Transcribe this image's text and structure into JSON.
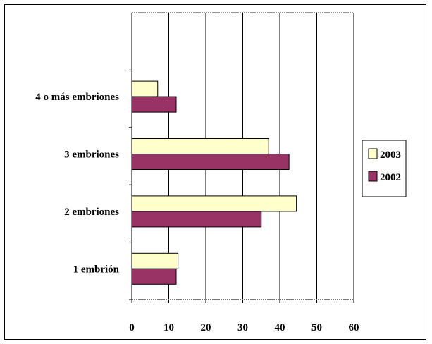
{
  "chart_data": {
    "type": "bar",
    "orientation": "horizontal",
    "categories": [
      "1 embrión",
      "2 embriones",
      "3 embriones",
      "4 o más embriones"
    ],
    "series": [
      {
        "name": "2003",
        "values": [
          12.5,
          44.5,
          37,
          7
        ],
        "color": "#FFFFCC"
      },
      {
        "name": "2002",
        "values": [
          12,
          35,
          42.5,
          12
        ],
        "color": "#993366"
      }
    ],
    "xticks": [
      "0",
      "10",
      "20",
      "30",
      "40",
      "50",
      "60"
    ],
    "xlim": [
      0,
      60
    ],
    "grid": true,
    "legend_position": "right",
    "title": "",
    "xlabel": "",
    "ylabel": ""
  }
}
